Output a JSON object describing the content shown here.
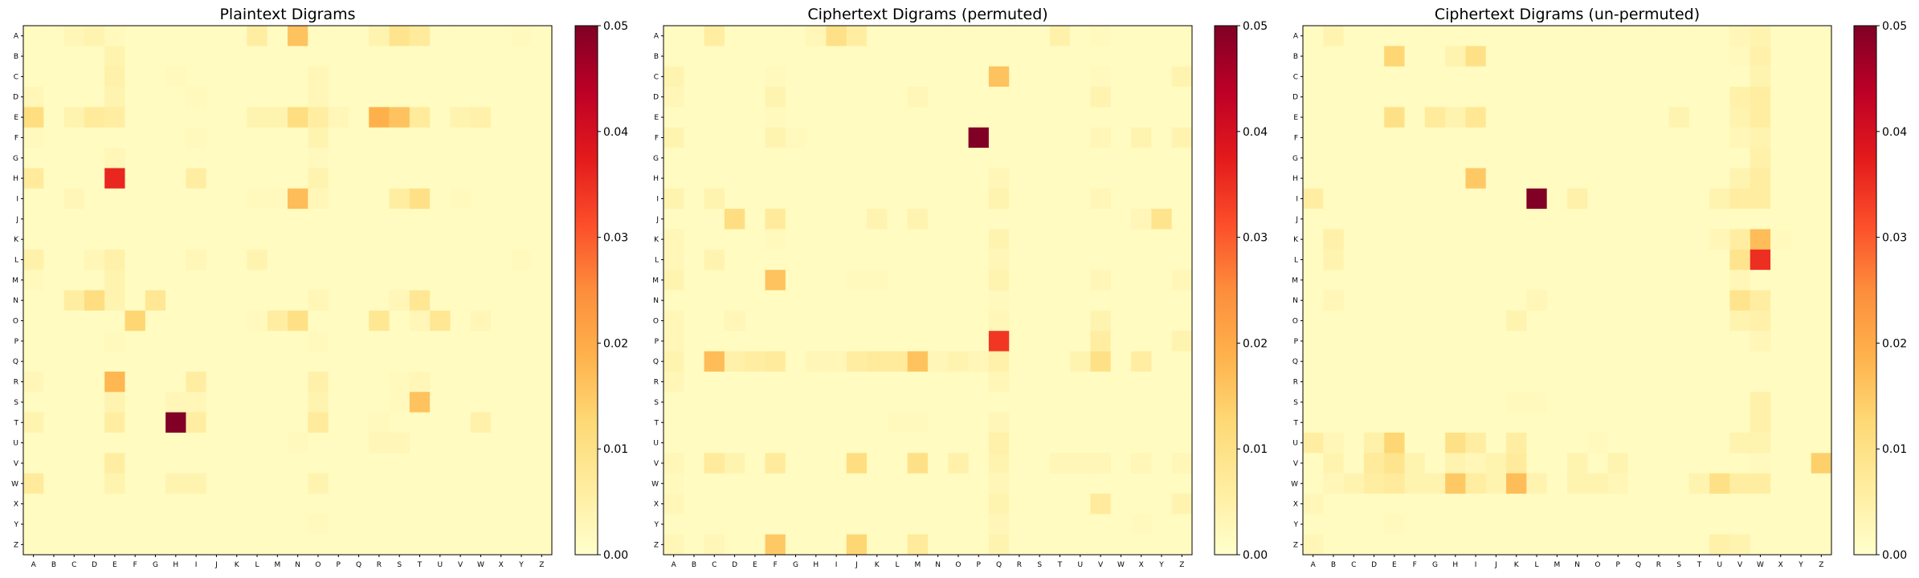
{
  "letters": [
    "A",
    "B",
    "C",
    "D",
    "E",
    "F",
    "G",
    "H",
    "I",
    "J",
    "K",
    "L",
    "M",
    "N",
    "O",
    "P",
    "Q",
    "R",
    "S",
    "T",
    "U",
    "V",
    "W",
    "X",
    "Y",
    "Z"
  ],
  "colormap": [
    "#ffffcc",
    "#ffeda0",
    "#fed976",
    "#feb24c",
    "#fd8d3c",
    "#fc4e2a",
    "#e31a1c",
    "#bd0026",
    "#800026"
  ],
  "chart_data": [
    {
      "type": "heatmap",
      "title": "Plaintext Digrams",
      "vmin": 0,
      "vmax": 0.05,
      "colorbar_ticks": [
        "0.00",
        "0.01",
        "0.02",
        "0.03",
        "0.04",
        "0.05"
      ],
      "cells": {
        "AC": 0.003,
        "AD": 0.004,
        "AE": 0.002,
        "AL": 0.006,
        "AN": 0.016,
        "AR": 0.004,
        "AS": 0.009,
        "AT": 0.007,
        "AY": 0.002,
        "BE": 0.004,
        "CE": 0.005,
        "CH": 0.002,
        "CO": 0.003,
        "DA": 0.003,
        "DE": 0.004,
        "DI": 0.002,
        "DO": 0.003,
        "EA": 0.011,
        "EC": 0.004,
        "ED": 0.007,
        "EE": 0.006,
        "EL": 0.004,
        "EM": 0.004,
        "EN": 0.011,
        "EO": 0.006,
        "EP": 0.003,
        "ER": 0.019,
        "ES": 0.016,
        "ET": 0.007,
        "EV": 0.004,
        "EW": 0.005,
        "FA": 0.002,
        "FO": 0.004,
        "FI": 0.002,
        "GE": 0.003,
        "GO": 0.002,
        "HA": 0.007,
        "HE": 0.036,
        "HI": 0.006,
        "HO": 0.004,
        "IC": 0.003,
        "IN": 0.017,
        "IS": 0.006,
        "IT": 0.01,
        "IO": 0.003,
        "IL": 0.002,
        "IM": 0.002,
        "IV": 0.002,
        "LA": 0.005,
        "LD": 0.003,
        "LE": 0.005,
        "LL": 0.004,
        "LI": 0.003,
        "LY": 0.002,
        "ME": 0.004,
        "MA": 0.002,
        "NC": 0.006,
        "ND": 0.011,
        "NE": 0.004,
        "NG": 0.008,
        "NO": 0.003,
        "NT": 0.008,
        "NS": 0.003,
        "OF": 0.013,
        "OM": 0.006,
        "ON": 0.01,
        "OR": 0.008,
        "OU": 0.008,
        "OL": 0.002,
        "OT": 0.003,
        "OW": 0.003,
        "PE": 0.002,
        "PO": 0.002,
        "RA": 0.003,
        "RE": 0.018,
        "RI": 0.006,
        "RO": 0.005,
        "RS": 0.002,
        "RT": 0.003,
        "SE": 0.004,
        "SH": 0.003,
        "SI": 0.003,
        "SO": 0.004,
        "ST": 0.016,
        "SS": 0.002,
        "TA": 0.004,
        "TE": 0.006,
        "TH": 0.05,
        "TI": 0.006,
        "TO": 0.007,
        "TW": 0.005,
        "TR": 0.002,
        "UR": 0.003,
        "US": 0.003,
        "UN": 0.002,
        "VE": 0.006,
        "WA": 0.007,
        "WE": 0.004,
        "WH": 0.004,
        "WI": 0.004,
        "WO": 0.004,
        "YO": 0.002
      }
    },
    {
      "type": "heatmap",
      "title": "Ciphertext Digrams (permuted)",
      "vmin": 0,
      "vmax": 0.05,
      "colorbar_ticks": [
        "0.00",
        "0.01",
        "0.02",
        "0.03",
        "0.04",
        "0.05"
      ],
      "cells": {
        "AC": 0.006,
        "AI": 0.01,
        "AJ": 0.006,
        "AH": 0.003,
        "AT": 0.005,
        "AV": 0.002,
        "CA": 0.004,
        "CQ": 0.016,
        "CZ": 0.004,
        "CV": 0.002,
        "CF": 0.002,
        "DA": 0.003,
        "DF": 0.004,
        "DM": 0.003,
        "DV": 0.004,
        "EF": 0.002,
        "FA": 0.004,
        "FF": 0.004,
        "FG": 0.002,
        "FP": 0.05,
        "FV": 0.003,
        "FX": 0.004,
        "FZ": 0.004,
        "HQ": 0.003,
        "IA": 0.004,
        "IC": 0.004,
        "IQ": 0.004,
        "IV": 0.003,
        "JD": 0.011,
        "JF": 0.007,
        "JK": 0.004,
        "JM": 0.004,
        "JX": 0.003,
        "JY": 0.009,
        "KA": 0.003,
        "KQ": 0.004,
        "KF": 0.002,
        "LA": 0.003,
        "LC": 0.004,
        "LQ": 0.003,
        "MA": 0.004,
        "MF": 0.016,
        "MQ": 0.004,
        "MV": 0.003,
        "MZ": 0.003,
        "MJ": 0.002,
        "MK": 0.002,
        "NQ": 0.002,
        "OA": 0.003,
        "OD": 0.003,
        "OQ": 0.003,
        "OV": 0.004,
        "PA": 0.003,
        "PQ": 0.034,
        "PV": 0.006,
        "PZ": 0.004,
        "QA": 0.004,
        "QC": 0.017,
        "QD": 0.005,
        "QE": 0.006,
        "QF": 0.007,
        "QJ": 0.006,
        "QK": 0.007,
        "QL": 0.007,
        "QM": 0.016,
        "QO": 0.004,
        "QQ": 0.005,
        "QV": 0.01,
        "QX": 0.006,
        "QH": 0.003,
        "QI": 0.003,
        "QN": 0.003,
        "QP": 0.003,
        "QU": 0.004,
        "RA": 0.003,
        "RQ": 0.003,
        "TQ": 0.003,
        "TL": 0.002,
        "TM": 0.002,
        "UQ": 0.005,
        "VA": 0.003,
        "VC": 0.007,
        "VD": 0.004,
        "VF": 0.007,
        "VJ": 0.011,
        "VM": 0.01,
        "VO": 0.005,
        "VQ": 0.004,
        "VT": 0.003,
        "VU": 0.003,
        "VV": 0.003,
        "VX": 0.003,
        "VZ": 0.003,
        "WQ": 0.003,
        "WA": 0.002,
        "XA": 0.003,
        "XQ": 0.004,
        "XV": 0.007,
        "XZ": 0.004,
        "YQ": 0.003,
        "YX": 0.002,
        "ZA": 0.003,
        "ZC": 0.003,
        "ZF": 0.015,
        "ZJ": 0.013,
        "ZM": 0.007,
        "ZQ": 0.004
      }
    },
    {
      "type": "heatmap",
      "title": "Ciphertext Digrams (un-permuted)",
      "vmin": 0,
      "vmax": 0.05,
      "colorbar_ticks": [
        "0.00",
        "0.01",
        "0.02",
        "0.03",
        "0.04",
        "0.05"
      ],
      "cells": {
        "AB": 0.004,
        "AW": 0.004,
        "AV": 0.003,
        "BE": 0.013,
        "BH": 0.004,
        "BI": 0.01,
        "BW": 0.005,
        "BV": 0.002,
        "CW": 0.004,
        "DV": 0.005,
        "DW": 0.006,
        "EE": 0.01,
        "EG": 0.007,
        "EI": 0.008,
        "EH": 0.004,
        "ES": 0.004,
        "EV": 0.004,
        "EW": 0.006,
        "FW": 0.004,
        "FV": 0.003,
        "GW": 0.005,
        "HI": 0.015,
        "HV": 0.004,
        "HW": 0.006,
        "IA": 0.006,
        "IL": 0.05,
        "IN": 0.005,
        "IU": 0.004,
        "IV": 0.006,
        "IW": 0.006,
        "KB": 0.005,
        "KV": 0.006,
        "KW": 0.017,
        "KU": 0.003,
        "KX": 0.002,
        "LB": 0.004,
        "LV": 0.009,
        "LW": 0.035,
        "MV": 0.003,
        "NB": 0.003,
        "NL": 0.003,
        "NV": 0.009,
        "NW": 0.006,
        "OK": 0.004,
        "OV": 0.004,
        "OW": 0.005,
        "PW": 0.003,
        "SW": 0.005,
        "SK": 0.002,
        "SL": 0.002,
        "TW": 0.005,
        "UA": 0.006,
        "UB": 0.003,
        "UD": 0.005,
        "UE": 0.013,
        "UH": 0.01,
        "UI": 0.006,
        "UK": 0.006,
        "UO": 0.002,
        "UV": 0.004,
        "UW": 0.004,
        "VB": 0.004,
        "VD": 0.007,
        "VE": 0.009,
        "VF": 0.004,
        "VH": 0.004,
        "VI": 0.003,
        "VJ": 0.004,
        "VK": 0.007,
        "VN": 0.004,
        "VP": 0.004,
        "VZ": 0.014,
        "VW": 0.002,
        "WC": 0.004,
        "WD": 0.006,
        "WE": 0.007,
        "WF": 0.004,
        "WG": 0.004,
        "WH": 0.015,
        "WI": 0.006,
        "WJ": 0.004,
        "WK": 0.017,
        "WL": 0.004,
        "WN": 0.004,
        "WO": 0.004,
        "WP": 0.003,
        "WT": 0.004,
        "WU": 0.01,
        "WV": 0.006,
        "WW": 0.006,
        "WB": 0.003,
        "XA": 0.003,
        "YE": 0.002,
        "ZA": 0.003,
        "ZU": 0.005,
        "ZV": 0.004
      }
    }
  ]
}
